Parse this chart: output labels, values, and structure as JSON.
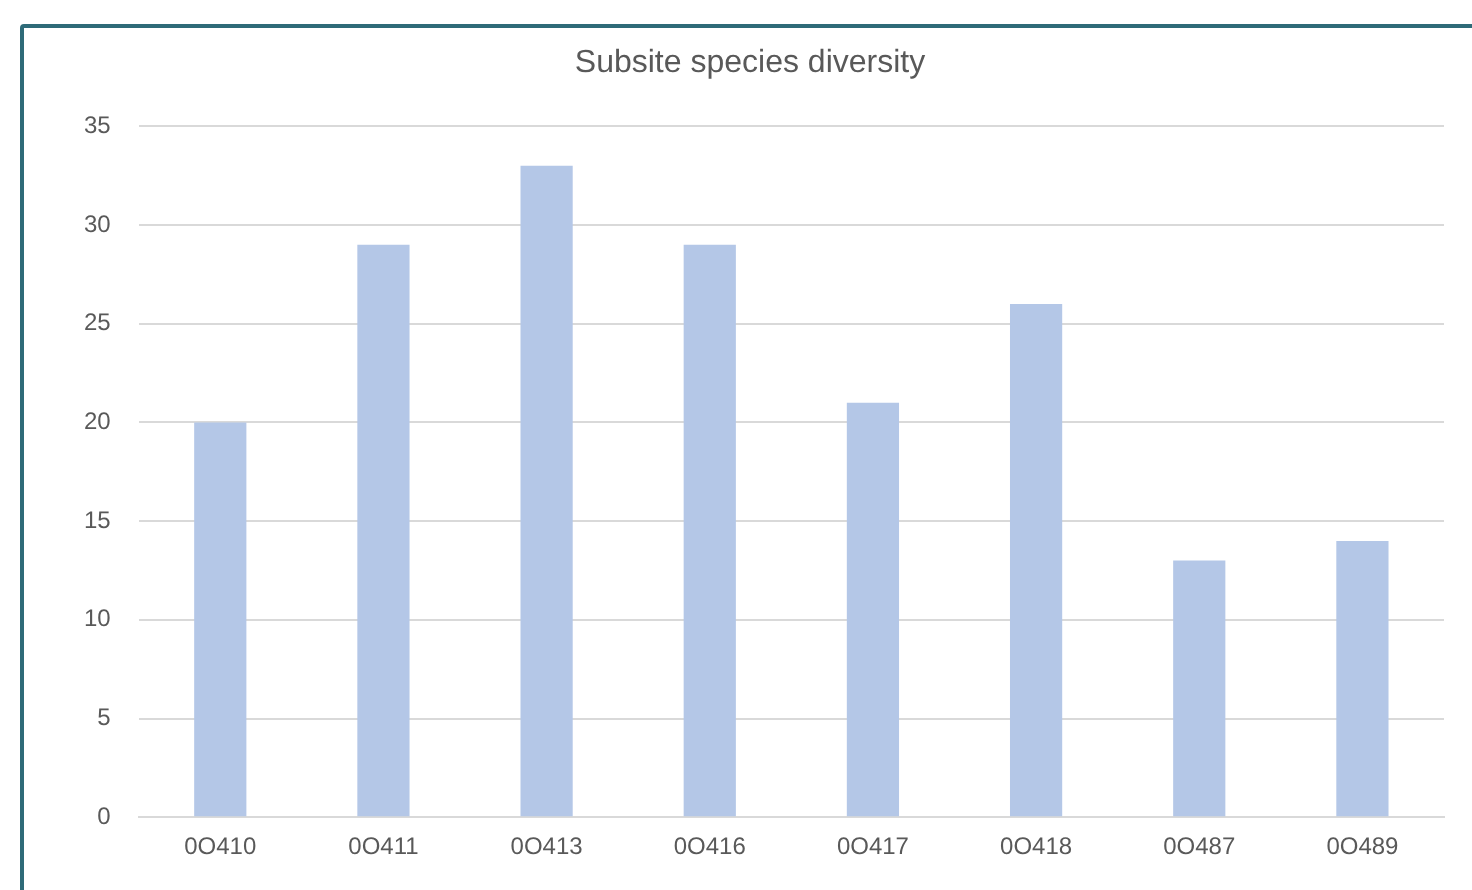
{
  "chart_data": {
    "type": "bar",
    "title": "Subsite species diversity",
    "categories": [
      "0O410",
      "0O411",
      "0O413",
      "0O416",
      "0O417",
      "0O418",
      "0O487",
      "0O489"
    ],
    "values": [
      20,
      29,
      33,
      29,
      21,
      26,
      13,
      14
    ],
    "color": "#b4c7e7",
    "ylim": [
      0,
      35
    ],
    "yticks": [
      0,
      5,
      10,
      15,
      20,
      25,
      30,
      35
    ],
    "grid": "y",
    "legend": false
  }
}
